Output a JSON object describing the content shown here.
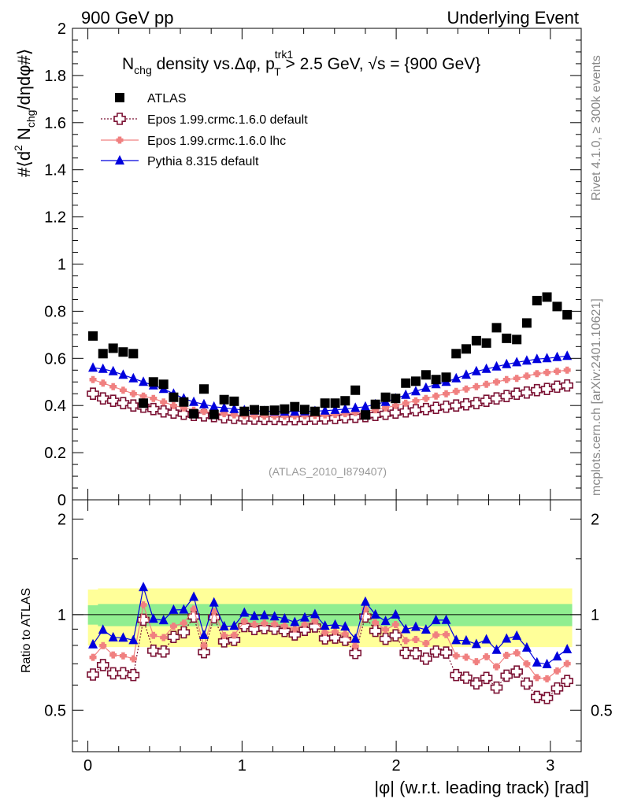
{
  "header": {
    "left": "900 GeV pp",
    "right": "Underlying Event"
  },
  "side": {
    "rivet": "Rivet 4.1.0, ≥ 300k events",
    "mcplots": "mcplots.cern.ch [arXiv:2401.10621]"
  },
  "chart_data": {
    "type": "scatter",
    "title": {
      "prefix": "N",
      "sub1": "chg",
      "mid": " density vs.Δφ, p",
      "sup": "trk1",
      "sub2": "T",
      "suffix": " > 2.5 GeV, √s = {900 GeV}"
    },
    "ylabel": {
      "a": "#⟨d",
      "b": "2",
      "c": " N",
      "d": "chg",
      "e": "/dηdφ#⟩"
    },
    "ratio_ylabel": "Ratio to ATLAS",
    "xlabel": "|φ| (w.r.t. leading track) [rad]",
    "analysis_id": "(ATLAS_2010_I879407)",
    "xlim": [
      -0.1,
      3.2
    ],
    "ylim": [
      0,
      2
    ],
    "ratio_ylim": [
      0.37,
      2.3
    ],
    "x_ticks": [
      "0",
      "1",
      "2",
      "3"
    ],
    "y_ticks": [
      "0",
      "0.2",
      "0.4",
      "0.6",
      "0.8",
      "1",
      "1.2",
      "1.4",
      "1.6",
      "1.8",
      "2"
    ],
    "ratio_ticks": [
      "0.5",
      "1",
      "2"
    ],
    "legend": [
      {
        "label": "ATLAS",
        "color": "#000000"
      },
      {
        "label": "Epos 1.99.crmc.1.6.0 default",
        "color": "#7b1133"
      },
      {
        "label": "Epos 1.99.crmc.1.6.0 lhc",
        "color": "#f08080"
      },
      {
        "label": "Pythia 8.315 default",
        "color": "#0000dd"
      }
    ],
    "x": [
      0.033,
      0.098,
      0.164,
      0.229,
      0.295,
      0.36,
      0.425,
      0.491,
      0.556,
      0.622,
      0.687,
      0.753,
      0.818,
      0.884,
      0.949,
      1.015,
      1.08,
      1.145,
      1.211,
      1.276,
      1.342,
      1.407,
      1.473,
      1.538,
      1.604,
      1.669,
      1.735,
      1.8,
      1.865,
      1.931,
      1.996,
      2.062,
      2.127,
      2.193,
      2.258,
      2.324,
      2.389,
      2.454,
      2.52,
      2.585,
      2.651,
      2.716,
      2.782,
      2.847,
      2.913,
      2.978,
      3.044,
      3.109
    ],
    "series": [
      {
        "name": "ATLAS",
        "values": [
          0.695,
          0.62,
          0.643,
          0.627,
          0.62,
          0.41,
          0.5,
          0.49,
          0.435,
          0.415,
          0.365,
          0.47,
          0.362,
          0.425,
          0.418,
          0.375,
          0.382,
          0.378,
          0.38,
          0.385,
          0.395,
          0.383,
          0.375,
          0.41,
          0.41,
          0.42,
          0.465,
          0.36,
          0.405,
          0.435,
          0.43,
          0.495,
          0.503,
          0.53,
          0.51,
          0.52,
          0.62,
          0.64,
          0.675,
          0.665,
          0.73,
          0.685,
          0.68,
          0.75,
          0.845,
          0.86,
          0.82,
          0.785
        ]
      },
      {
        "name": "Epos 1.99.crmc.1.6.0 default",
        "values": [
          0.45,
          0.43,
          0.42,
          0.41,
          0.4,
          0.395,
          0.385,
          0.375,
          0.37,
          0.365,
          0.36,
          0.358,
          0.355,
          0.35,
          0.348,
          0.345,
          0.344,
          0.343,
          0.343,
          0.342,
          0.342,
          0.343,
          0.344,
          0.345,
          0.347,
          0.35,
          0.352,
          0.355,
          0.36,
          0.365,
          0.37,
          0.375,
          0.38,
          0.385,
          0.39,
          0.395,
          0.4,
          0.405,
          0.41,
          0.42,
          0.43,
          0.44,
          0.45,
          0.455,
          0.465,
          0.47,
          0.48,
          0.485
        ]
      },
      {
        "name": "Epos 1.99.crmc.1.6.0 lhc",
        "values": [
          0.51,
          0.495,
          0.48,
          0.465,
          0.45,
          0.44,
          0.43,
          0.415,
          0.4,
          0.39,
          0.38,
          0.375,
          0.37,
          0.365,
          0.36,
          0.357,
          0.356,
          0.355,
          0.355,
          0.355,
          0.356,
          0.357,
          0.358,
          0.36,
          0.362,
          0.365,
          0.37,
          0.375,
          0.382,
          0.39,
          0.4,
          0.41,
          0.42,
          0.43,
          0.44,
          0.45,
          0.46,
          0.47,
          0.48,
          0.49,
          0.5,
          0.51,
          0.515,
          0.525,
          0.535,
          0.54,
          0.545,
          0.55
        ]
      },
      {
        "name": "Pythia 8.315 default",
        "values": [
          0.56,
          0.555,
          0.545,
          0.53,
          0.515,
          0.5,
          0.485,
          0.47,
          0.45,
          0.43,
          0.415,
          0.405,
          0.395,
          0.39,
          0.385,
          0.38,
          0.378,
          0.376,
          0.375,
          0.374,
          0.374,
          0.375,
          0.376,
          0.378,
          0.381,
          0.385,
          0.39,
          0.395,
          0.405,
          0.415,
          0.43,
          0.445,
          0.46,
          0.475,
          0.49,
          0.5,
          0.515,
          0.53,
          0.545,
          0.555,
          0.565,
          0.575,
          0.583,
          0.59,
          0.597,
          0.6,
          0.605,
          0.61
        ]
      }
    ],
    "band_inner": [
      0.07,
      0.08,
      0.08,
      0.08,
      0.08,
      0.08,
      0.08,
      0.08,
      0.08,
      0.08,
      0.08,
      0.08,
      0.08,
      0.08,
      0.08,
      0.08,
      0.08,
      0.08,
      0.08,
      0.08,
      0.08,
      0.08,
      0.08,
      0.08,
      0.08,
      0.08,
      0.08,
      0.08,
      0.08,
      0.08,
      0.08,
      0.08,
      0.08,
      0.08,
      0.08,
      0.08,
      0.08,
      0.08,
      0.08,
      0.08,
      0.08,
      0.08,
      0.08,
      0.08,
      0.08,
      0.08,
      0.08,
      0.08
    ],
    "band_outer": [
      0.2,
      0.21,
      0.21,
      0.21,
      0.21,
      0.21,
      0.21,
      0.21,
      0.21,
      0.21,
      0.21,
      0.21,
      0.21,
      0.21,
      0.21,
      0.21,
      0.21,
      0.21,
      0.21,
      0.21,
      0.21,
      0.21,
      0.21,
      0.21,
      0.21,
      0.21,
      0.21,
      0.21,
      0.21,
      0.21,
      0.21,
      0.21,
      0.21,
      0.21,
      0.21,
      0.21,
      0.21,
      0.21,
      0.21,
      0.21,
      0.21,
      0.21,
      0.21,
      0.21,
      0.21,
      0.21,
      0.21,
      0.21
    ],
    "colors": {
      "band_inner": "#90ee90",
      "band_outer": "#ffff99"
    }
  }
}
